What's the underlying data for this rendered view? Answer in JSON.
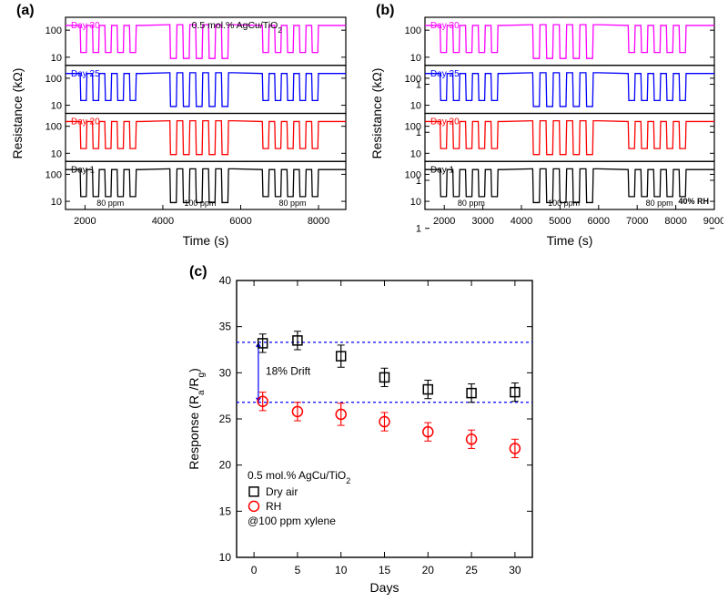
{
  "panel_a": {
    "label": "(a)",
    "annotation": "0.5 mol.% AgCu/TiO",
    "annotation_sub": "2",
    "ylabel": "Resistance (kΩ)",
    "xlabel": "Time (s)",
    "xlim": [
      1500,
      8700
    ],
    "xticks": [
      2000,
      4000,
      6000,
      8000
    ],
    "yticks_major": [
      10,
      100
    ],
    "stacks": [
      {
        "label": "Day 30",
        "color": "#ff00ff"
      },
      {
        "label": "Day 25",
        "color": "#0000ff"
      },
      {
        "label": "Day 20",
        "color": "#ff0000"
      },
      {
        "label": "Day 1",
        "color": "#000000"
      }
    ],
    "ppm_labels": [
      "80 ppm",
      "100 ppm",
      "80 ppm"
    ],
    "axis_fontsize": 14,
    "tick_fontsize": 11,
    "stack_label_fontsize": 10
  },
  "panel_b": {
    "label": "(b)",
    "ylabel": "Resistance (kΩ)",
    "xlabel": "Time (s)",
    "xlim": [
      1500,
      9000
    ],
    "xticks": [
      2000,
      3000,
      4000,
      5000,
      6000,
      7000,
      8000,
      9000
    ],
    "yticks_major": [
      1,
      10,
      100
    ],
    "stacks": [
      {
        "label": "Day 30",
        "color": "#ff00ff"
      },
      {
        "label": "Day 25",
        "color": "#0000ff"
      },
      {
        "label": "Day 20",
        "color": "#ff0000"
      },
      {
        "label": "Day 1",
        "color": "#000000"
      }
    ],
    "ppm_labels": [
      "80 ppm",
      "100 ppm",
      "80 ppm"
    ],
    "rh_label": "40% RH",
    "axis_fontsize": 14,
    "tick_fontsize": 11,
    "stack_label_fontsize": 10
  },
  "panel_c": {
    "label": "(c)",
    "ylabel": "Response (Rₐ/R_g)",
    "ylabel_main": "Response (R",
    "ylabel_sub1": "a",
    "ylabel_mid": "/R",
    "ylabel_sub2": "g",
    "ylabel_end": ")",
    "xlabel": "Days",
    "xlim": [
      -2,
      32
    ],
    "ylim": [
      10,
      40
    ],
    "xticks": [
      0,
      5,
      10,
      15,
      20,
      25,
      30
    ],
    "yticks": [
      10,
      15,
      20,
      25,
      30,
      35,
      40
    ],
    "drift_label": "18% Drift",
    "drift_color": "#0000ff",
    "annotation": "0.5 mol.% AgCu/TiO",
    "annotation_sub": "2",
    "legend": [
      {
        "label": "Dry air",
        "marker": "square",
        "color": "#000000"
      },
      {
        "label": "RH",
        "marker": "circle",
        "color": "#ff0000"
      }
    ],
    "condition": "@100 ppm xylene",
    "series_dry": [
      {
        "x": 1,
        "y": 33.2,
        "err": 1.0
      },
      {
        "x": 5,
        "y": 33.5,
        "err": 1.0
      },
      {
        "x": 10,
        "y": 31.8,
        "err": 1.2
      },
      {
        "x": 15,
        "y": 29.5,
        "err": 1.0
      },
      {
        "x": 20,
        "y": 28.2,
        "err": 1.0
      },
      {
        "x": 25,
        "y": 27.8,
        "err": 1.0
      },
      {
        "x": 30,
        "y": 27.9,
        "err": 1.0
      }
    ],
    "series_rh": [
      {
        "x": 1,
        "y": 26.9,
        "err": 1.0
      },
      {
        "x": 5,
        "y": 25.8,
        "err": 1.0
      },
      {
        "x": 10,
        "y": 25.5,
        "err": 1.2
      },
      {
        "x": 15,
        "y": 24.7,
        "err": 1.0
      },
      {
        "x": 20,
        "y": 23.6,
        "err": 1.0
      },
      {
        "x": 25,
        "y": 22.8,
        "err": 1.0
      },
      {
        "x": 30,
        "y": 21.8,
        "err": 1.0
      }
    ],
    "dashed_lines_y": [
      33.3,
      26.8
    ],
    "dashed_color": "#0000ff",
    "errorbar_color_dry": "#000000",
    "errorbar_color_rh": "#ff0000",
    "axis_fontsize": 14,
    "tick_fontsize": 12
  }
}
